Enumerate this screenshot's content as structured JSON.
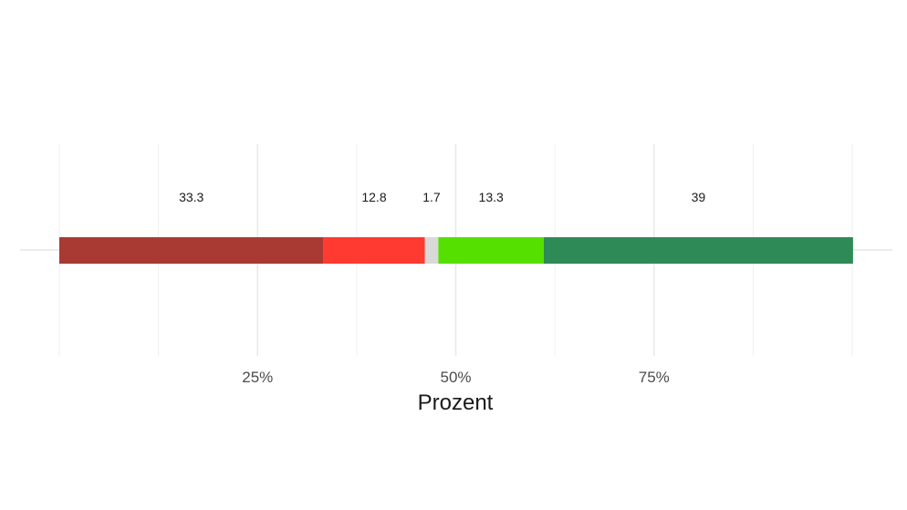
{
  "chart_data": {
    "type": "bar",
    "orientation": "horizontal-stacked",
    "xlabel": "Prozent",
    "xlim": [
      0,
      100
    ],
    "x_ticks": [
      25,
      50,
      75
    ],
    "x_tick_labels": [
      "25%",
      "50%",
      "75%"
    ],
    "grid": true,
    "segments": [
      {
        "value": 33.3,
        "label": "33.3",
        "color": "#a83a33"
      },
      {
        "value": 12.8,
        "label": "12.8",
        "color": "#ff3a30"
      },
      {
        "value": 1.7,
        "label": "1.7",
        "color": "#d9d9d9"
      },
      {
        "value": 13.3,
        "label": "13.3",
        "color": "#55e000"
      },
      {
        "value": 39,
        "label": "39",
        "color": "#2e8b57"
      }
    ]
  }
}
